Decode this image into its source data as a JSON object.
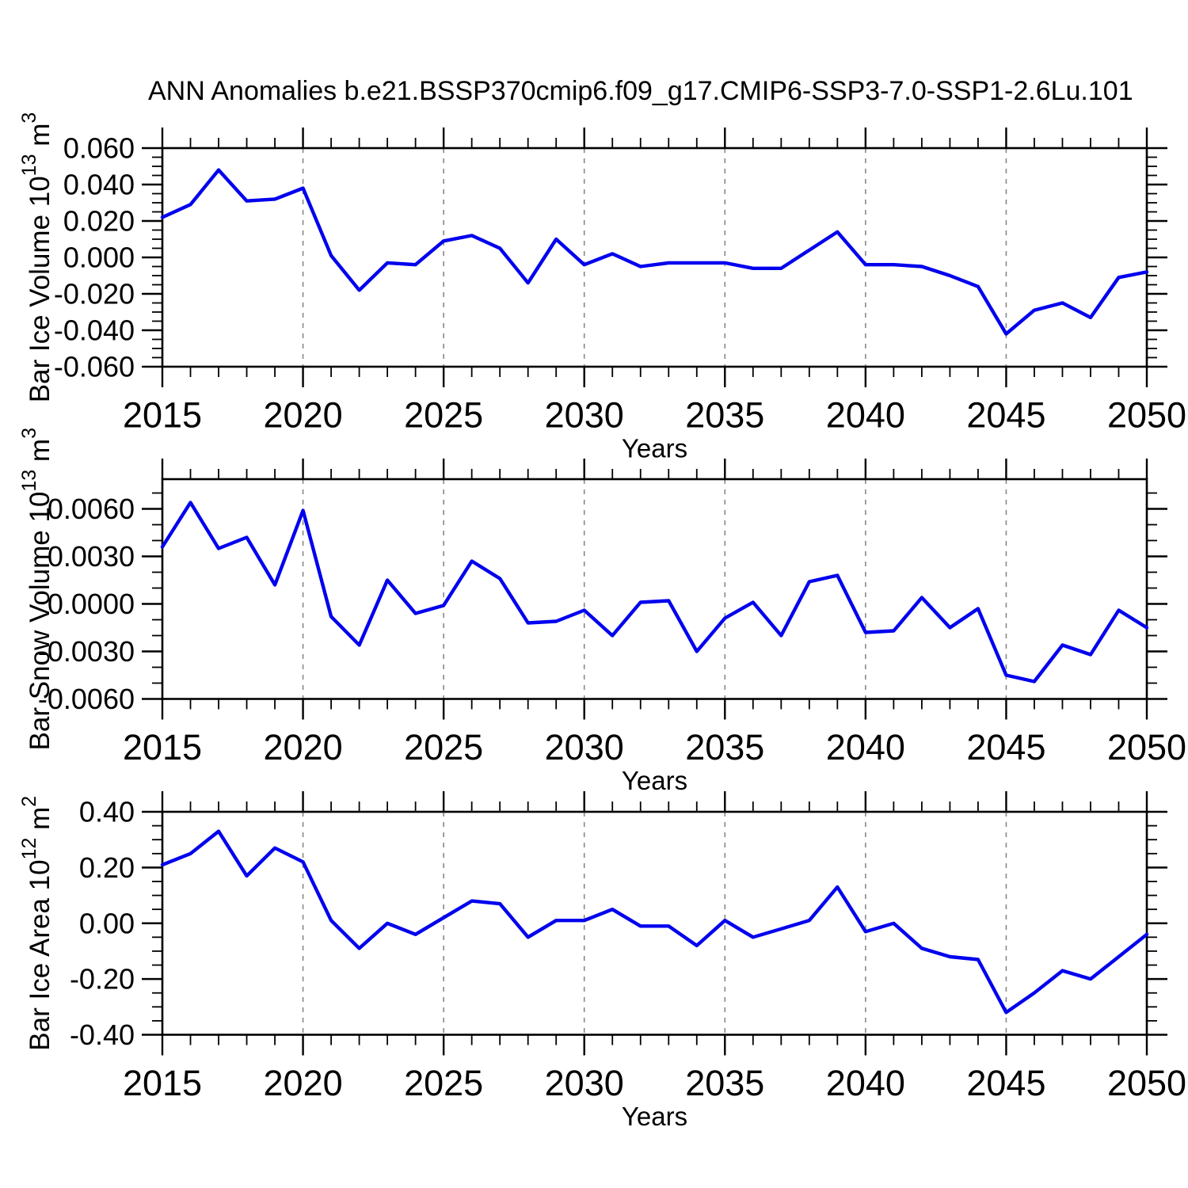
{
  "title": "ANN Anomalies b.e21.BSSP370cmip6.f09_g17.CMIP6-SSP3-7.0-SSP1-2.6Lu.101",
  "x_axis": {
    "label": "Years",
    "min": 2015,
    "max": 2050,
    "major_step": 5,
    "minor_step": 1,
    "tick_labels": [
      "2015",
      "2020",
      "2025",
      "2030",
      "2035",
      "2040",
      "2045",
      "2050"
    ],
    "dashed_gridline_years": [
      2020,
      2025,
      2030,
      2035,
      2040,
      2045
    ]
  },
  "style": {
    "line_color": "#0000EE",
    "grid_color": "#888888",
    "axis_color": "#000000",
    "background": "#FFFFFF"
  },
  "chart_data": [
    {
      "type": "line",
      "title": "",
      "xlabel": "Years",
      "ylabel": "Bar Ice Volume 10¹³ m³",
      "ylabel_segments": [
        {
          "t": "Bar Ice Volume 10"
        },
        {
          "t": "13",
          "sup": true
        },
        {
          "t": " m"
        },
        {
          "t": "3",
          "sup": true
        }
      ],
      "x": [
        2015,
        2016,
        2017,
        2018,
        2019,
        2020,
        2021,
        2022,
        2023,
        2024,
        2025,
        2026,
        2027,
        2028,
        2029,
        2030,
        2031,
        2032,
        2033,
        2034,
        2035,
        2036,
        2037,
        2038,
        2039,
        2040,
        2041,
        2042,
        2043,
        2044,
        2045,
        2046,
        2047,
        2048,
        2049,
        2050
      ],
      "values": [
        0.022,
        0.029,
        0.048,
        0.031,
        0.032,
        0.038,
        0.001,
        -0.018,
        -0.003,
        -0.004,
        0.009,
        0.012,
        0.005,
        -0.014,
        0.01,
        -0.004,
        0.002,
        -0.005,
        -0.003,
        -0.003,
        -0.003,
        -0.006,
        -0.006,
        0.004,
        0.014,
        -0.004,
        -0.004,
        -0.005,
        -0.01,
        -0.016,
        -0.042,
        -0.029,
        -0.025,
        -0.033,
        -0.011,
        -0.008
      ],
      "ylim": [
        -0.06,
        0.06
      ],
      "ytick_values": [
        0.06,
        0.04,
        0.02,
        0.0,
        -0.02,
        -0.04,
        -0.06
      ],
      "ytick_labels": [
        "0.060",
        "0.040",
        "0.020",
        "0.000",
        "-0.020",
        "-0.040",
        "-0.060"
      ],
      "yminor_step": 0.005,
      "grid": "dashed-vertical",
      "legend": null
    },
    {
      "type": "line",
      "title": "",
      "xlabel": "Years",
      "ylabel": "Bar Snow Volume 10¹³ m³",
      "ylabel_segments": [
        {
          "t": "Bar Snow Volume 10"
        },
        {
          "t": "13",
          "sup": true
        },
        {
          "t": " m"
        },
        {
          "t": "3",
          "sup": true
        }
      ],
      "x": [
        2015,
        2016,
        2017,
        2018,
        2019,
        2020,
        2021,
        2022,
        2023,
        2024,
        2025,
        2026,
        2027,
        2028,
        2029,
        2030,
        2031,
        2032,
        2033,
        2034,
        2035,
        2036,
        2037,
        2038,
        2039,
        2040,
        2041,
        2042,
        2043,
        2044,
        2045,
        2046,
        2047,
        2048,
        2049,
        2050
      ],
      "values": [
        0.0036,
        0.0064,
        0.0035,
        0.0042,
        0.0012,
        0.0059,
        -0.0008,
        -0.0026,
        0.0015,
        -0.0006,
        -0.0001,
        0.0027,
        0.0016,
        -0.0012,
        -0.0011,
        -0.0004,
        -0.002,
        0.0001,
        0.0002,
        -0.003,
        -0.0009,
        0.0001,
        -0.002,
        0.0014,
        0.0018,
        -0.0018,
        -0.0017,
        0.0004,
        -0.0015,
        -0.0003,
        -0.0045,
        -0.0049,
        -0.0026,
        -0.0032,
        -0.0004,
        -0.0015
      ],
      "ylim": [
        -0.006,
        0.007875
      ],
      "ytick_values": [
        0.006,
        0.003,
        0.0,
        -0.003,
        -0.006
      ],
      "ytick_labels": [
        "0.0060",
        "0.0030",
        "0.0000",
        "-0.0030",
        "-0.0060"
      ],
      "yminor_step": 0.001,
      "grid": "dashed-vertical",
      "legend": null
    },
    {
      "type": "line",
      "title": "",
      "xlabel": "Years",
      "ylabel": "Bar Ice Area 10¹² m²",
      "ylabel_segments": [
        {
          "t": "Bar Ice Area 10"
        },
        {
          "t": "12",
          "sup": true
        },
        {
          "t": " m"
        },
        {
          "t": "2",
          "sup": true
        }
      ],
      "x": [
        2015,
        2016,
        2017,
        2018,
        2019,
        2020,
        2021,
        2022,
        2023,
        2024,
        2025,
        2026,
        2027,
        2028,
        2029,
        2030,
        2031,
        2032,
        2033,
        2034,
        2035,
        2036,
        2037,
        2038,
        2039,
        2040,
        2041,
        2042,
        2043,
        2044,
        2045,
        2046,
        2047,
        2048,
        2049,
        2050
      ],
      "values": [
        0.21,
        0.25,
        0.33,
        0.17,
        0.27,
        0.22,
        0.01,
        -0.09,
        0.0,
        -0.04,
        0.02,
        0.08,
        0.07,
        -0.05,
        0.01,
        0.01,
        0.05,
        -0.01,
        -0.01,
        -0.08,
        0.01,
        -0.05,
        -0.02,
        0.01,
        0.13,
        -0.03,
        0.0,
        -0.09,
        -0.12,
        -0.13,
        -0.32,
        -0.25,
        -0.17,
        -0.2,
        -0.12,
        -0.04
      ],
      "ylim": [
        -0.4,
        0.4
      ],
      "ytick_values": [
        0.4,
        0.2,
        0.0,
        -0.2,
        -0.4
      ],
      "ytick_labels": [
        "0.40",
        "0.20",
        "0.00",
        "-0.20",
        "-0.40"
      ],
      "yminor_step": 0.05,
      "grid": "dashed-vertical",
      "legend": null
    }
  ]
}
